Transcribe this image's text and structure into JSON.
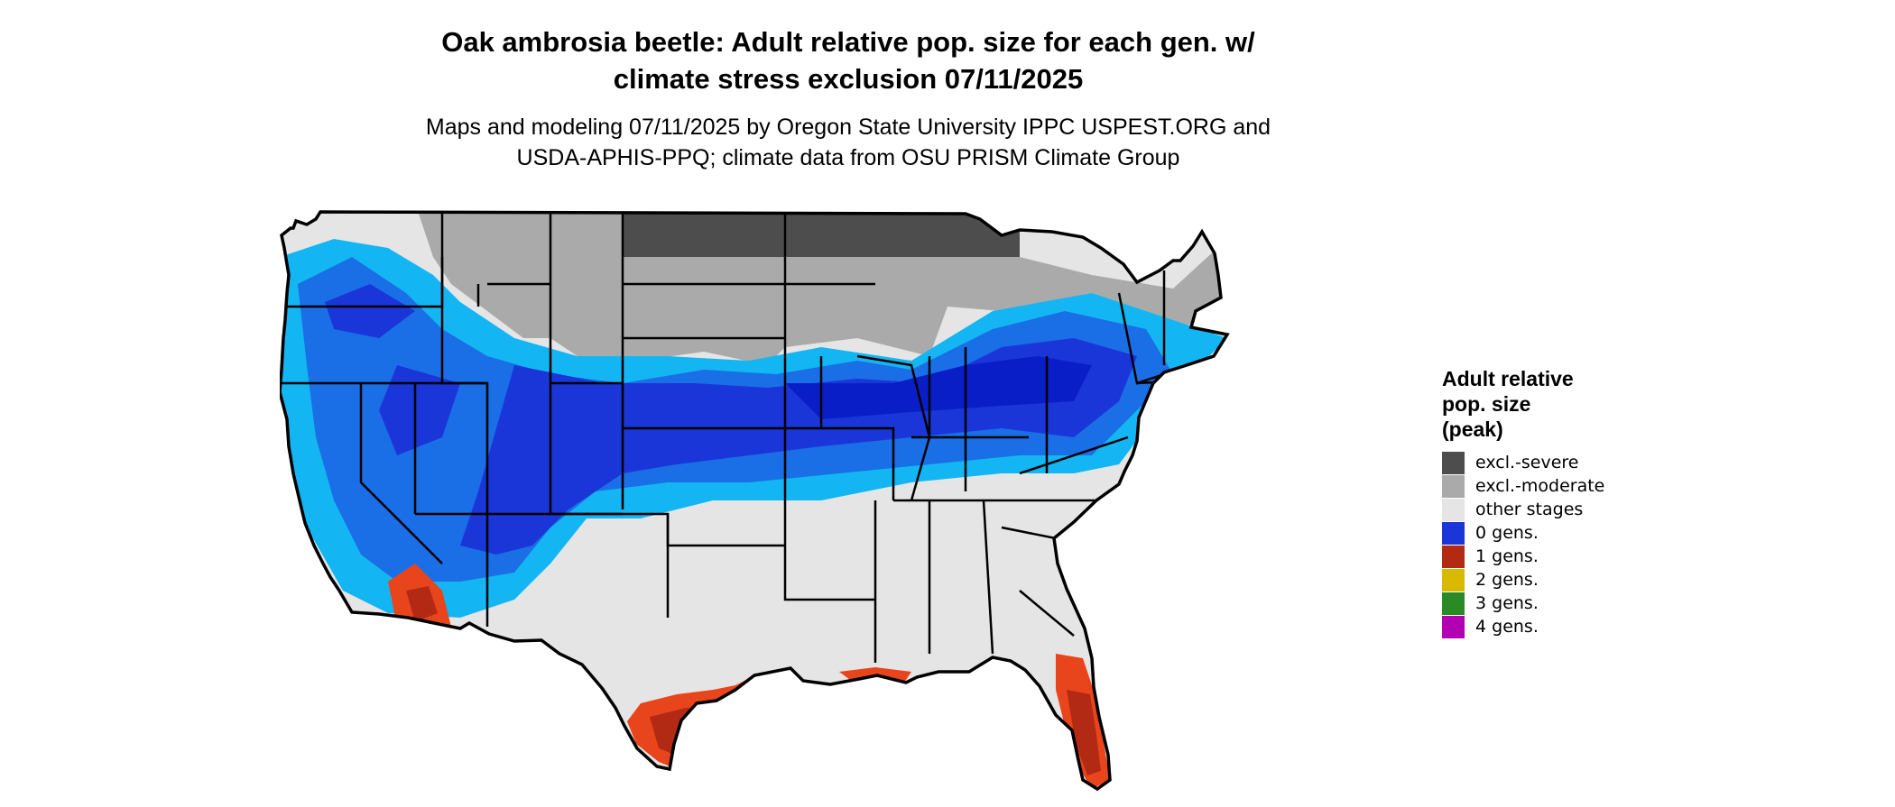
{
  "title": {
    "line1": "Oak ambrosia beetle: Adult relative pop. size for each gen. w/",
    "line2": "climate stress exclusion 07/11/2025"
  },
  "subtitle": {
    "line1": "Maps and modeling 07/11/2025 by Oregon State University IPPC USPEST.ORG and",
    "line2": "USDA-APHIS-PPQ; climate data from OSU PRISM Climate Group"
  },
  "legend": {
    "title_lines": [
      "Adult relative",
      "pop. size",
      "(peak)"
    ],
    "items": [
      {
        "label": "excl.-severe",
        "color": "#4d4d4d"
      },
      {
        "label": "excl.-moderate",
        "color": "#aaaaaa"
      },
      {
        "label": "other stages",
        "color": "#e5e5e5"
      },
      {
        "label": "0 gens.",
        "color": "#1a36d9"
      },
      {
        "label": "1 gens.",
        "color": "#b32a14"
      },
      {
        "label": "2 gens.",
        "color": "#d9b800"
      },
      {
        "label": "3 gens.",
        "color": "#2a8a26"
      },
      {
        "label": "4 gens.",
        "color": "#b200b2"
      }
    ]
  },
  "map": {
    "region": "Contiguous United States",
    "colors": {
      "severe": "#4d4d4d",
      "moderate": "#aaaaaa",
      "other": "#e5e5e5",
      "light_blue": "#13b6f2",
      "mid_blue": "#1a6ee6",
      "blue": "#1a36d9",
      "dark_blue": "#0a1ec8",
      "orange": "#e8451c",
      "red": "#b32a14",
      "border": "#000000"
    }
  }
}
